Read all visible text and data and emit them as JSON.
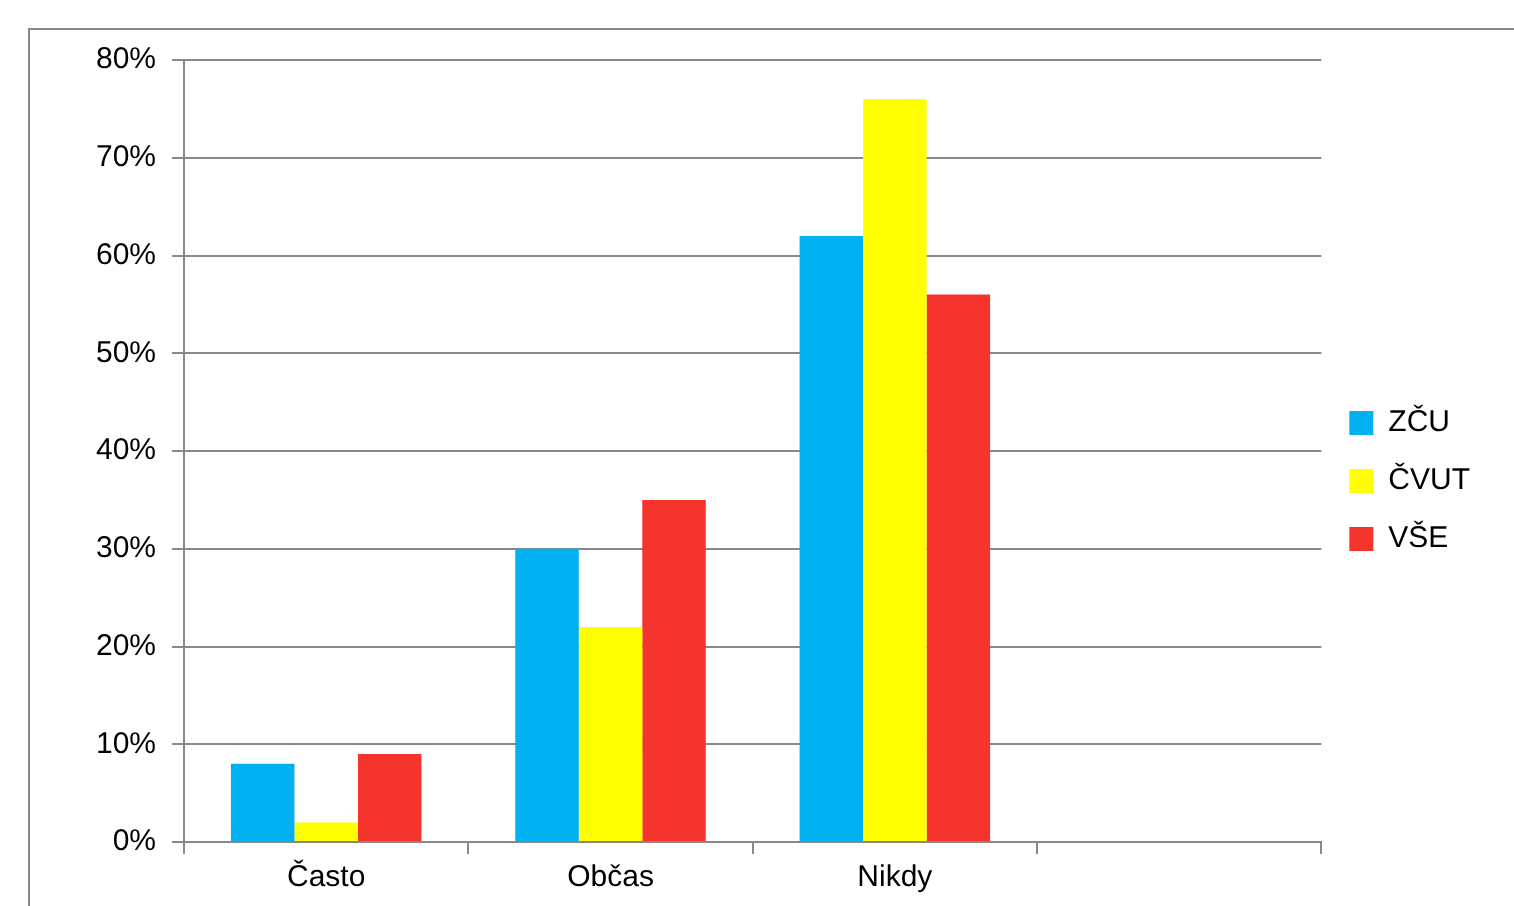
{
  "chart_data": {
    "type": "bar",
    "categories": [
      "Často",
      "Občas",
      "Nikdy",
      null
    ],
    "series": [
      {
        "name": "ZČU",
        "color": "#00b0f0",
        "values": [
          8,
          30,
          62,
          null
        ]
      },
      {
        "name": "ČVUT",
        "color": "#ffff00",
        "values": [
          2,
          22,
          76,
          null
        ]
      },
      {
        "name": "VŠE",
        "color": "#f5352d",
        "values": [
          9,
          35,
          56,
          null
        ]
      }
    ],
    "ylim": [
      0,
      80
    ],
    "yticks": [
      {
        "value": 0,
        "label": "0%"
      },
      {
        "value": 10,
        "label": "10%"
      },
      {
        "value": 20,
        "label": "20%"
      },
      {
        "value": 30,
        "label": "30%"
      },
      {
        "value": 40,
        "label": "40%"
      },
      {
        "value": 50,
        "label": "50%"
      },
      {
        "value": 60,
        "label": "60%"
      },
      {
        "value": 70,
        "label": "70%"
      },
      {
        "value": 80,
        "label": "80%"
      }
    ],
    "grid": "y",
    "legend": "right"
  }
}
